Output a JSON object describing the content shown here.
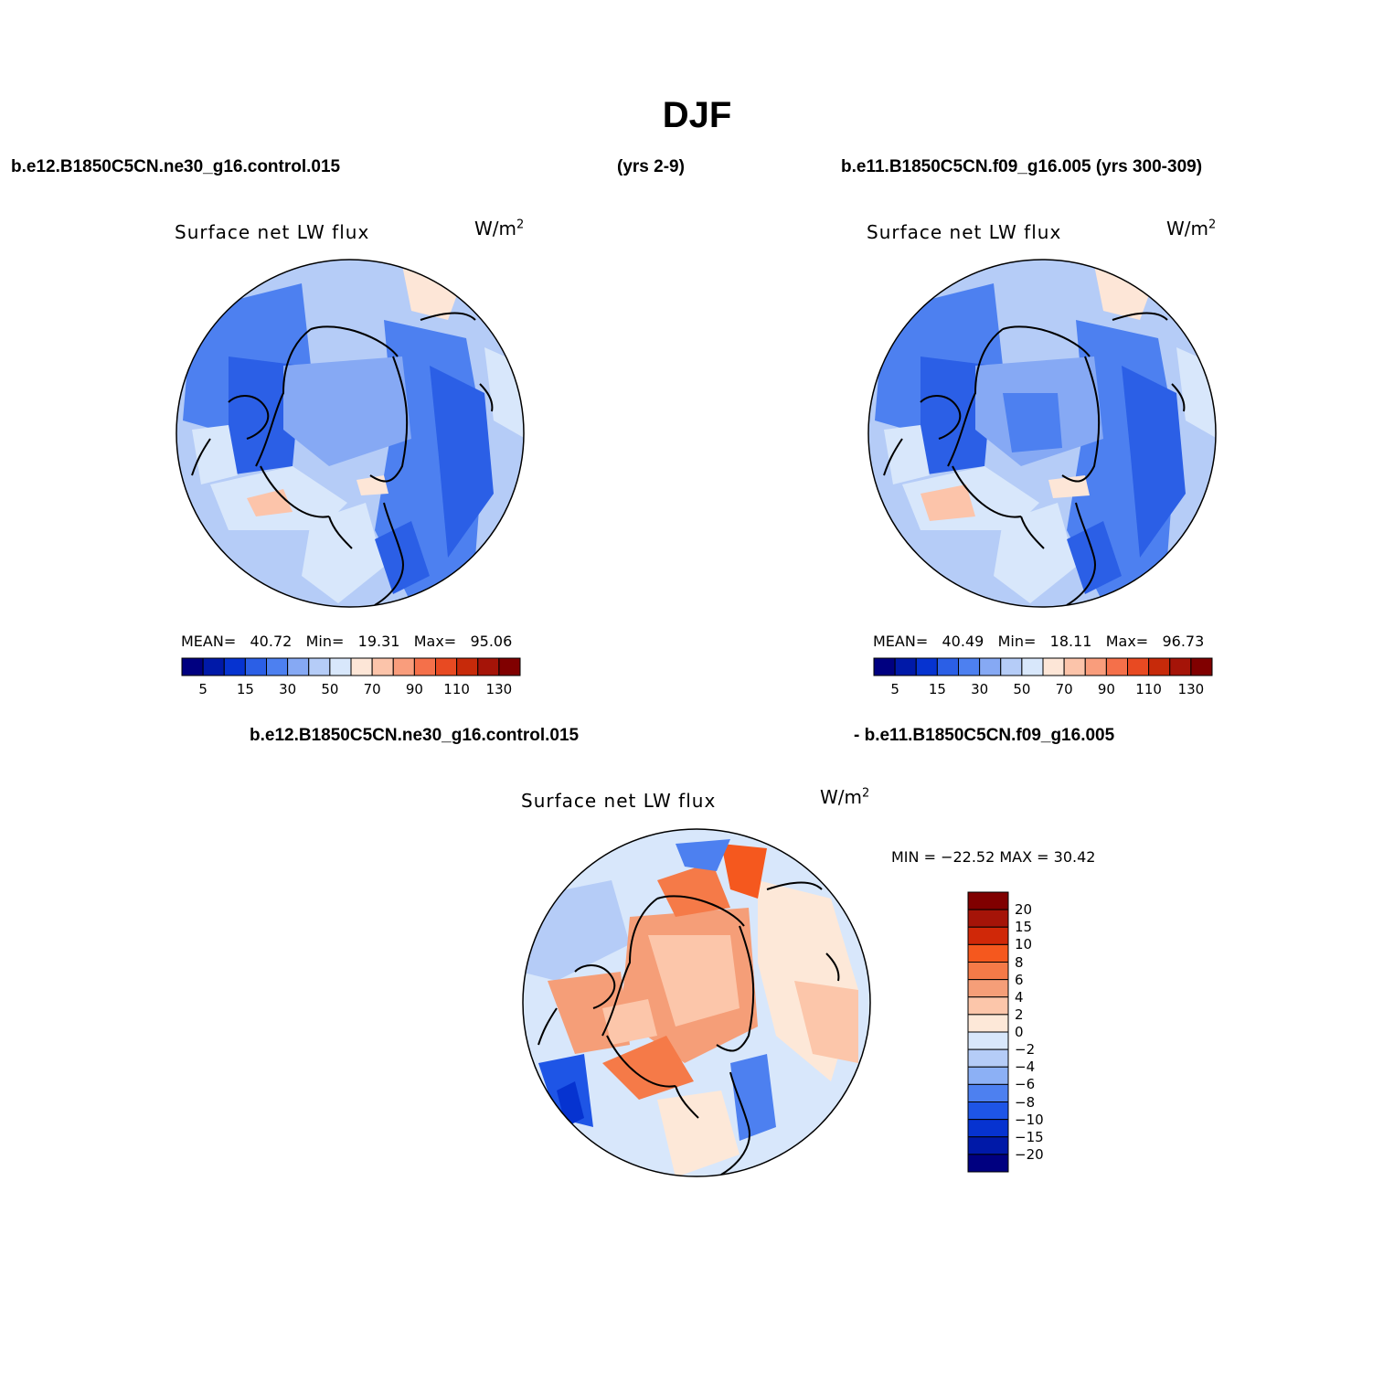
{
  "title": "DJF",
  "top_left_header": "b.e12.B1850C5CN.ne30_g16.control.015",
  "top_mid_header": "(yrs 2-9)",
  "top_right_header": "b.e11.B1850C5CN.f09_g16.005 (yrs 300-309)",
  "bottom_header_left": "b.e12.B1850C5CN.ne30_g16.control.015",
  "bottom_header_right": "- b.e11.B1850C5CN.f09_g16.005",
  "panels": [
    {
      "title": "Surface net LW flux",
      "units": "W/m",
      "units_exp": "2",
      "mean_label": "MEAN=",
      "mean": "40.72",
      "min_label": "Min=",
      "min": "19.31",
      "max_label": "Max=",
      "max": "95.06"
    },
    {
      "title": "Surface net LW flux",
      "units": "W/m",
      "units_exp": "2",
      "mean_label": "MEAN=",
      "mean": "40.49",
      "min_label": "Min=",
      "min": "18.11",
      "max_label": "Max=",
      "max": "96.73"
    },
    {
      "title": "Surface net LW flux",
      "units": "W/m",
      "units_exp": "2",
      "minmax_text": "MIN = −22.52 MAX =   30.42"
    }
  ],
  "abs_colorbar": {
    "colors": [
      "#000080",
      "#0019a8",
      "#0633d0",
      "#2b5fe6",
      "#4d80f0",
      "#86a9f4",
      "#b5ccf7",
      "#d8e7fb",
      "#fde6d7",
      "#fcc4aa",
      "#f99d7c",
      "#f5704a",
      "#e84a22",
      "#c72a0a",
      "#a51408",
      "#800000"
    ],
    "labels": [
      "5",
      "15",
      "30",
      "50",
      "70",
      "90",
      "110",
      "130"
    ]
  },
  "diff_colorbar": {
    "colors": [
      "#800000",
      "#a51408",
      "#d02808",
      "#f5581e",
      "#f57a48",
      "#f59e78",
      "#fcc6aa",
      "#fde8d8",
      "#d8e7fb",
      "#b5ccf7",
      "#8cb0f5",
      "#4d80f0",
      "#1e55e6",
      "#0633d0",
      "#0019a8",
      "#000080"
    ],
    "labels": [
      "20",
      "15",
      "10",
      "8",
      "6",
      "4",
      "2",
      "0",
      "−2",
      "−4",
      "−6",
      "−8",
      "−10",
      "−15",
      "−20"
    ]
  }
}
